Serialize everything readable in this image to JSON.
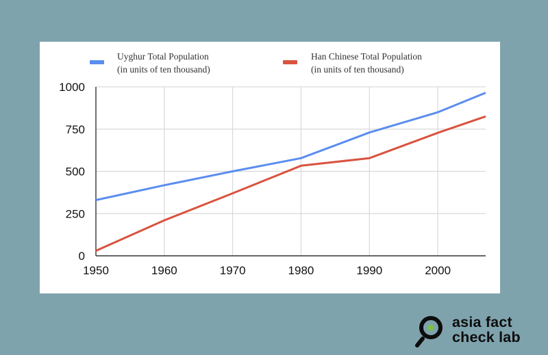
{
  "chart_data": {
    "type": "line",
    "title": "",
    "xlabel": "",
    "ylabel": "",
    "x": [
      1950,
      1960,
      1970,
      1980,
      1990,
      2000,
      2007
    ],
    "x_ticks": [
      "1950",
      "1960",
      "1970",
      "1980",
      "1990",
      "2000"
    ],
    "y_ticks": [
      "0",
      "250",
      "500",
      "750",
      "1000"
    ],
    "xlim": [
      1950,
      2007
    ],
    "ylim": [
      0,
      1000
    ],
    "grid": true,
    "legend_position": "top",
    "series": [
      {
        "name_line1": "Uyghur Total Population",
        "name_line2": "(in units of ten thousand)",
        "color": "#5b8def",
        "values": [
          330,
          418,
          500,
          578,
          730,
          850,
          965
        ]
      },
      {
        "name_line1": "Han Chinese Total Population",
        "name_line2": "(in units of ten thousand)",
        "color": "#d9533f",
        "values": [
          30,
          210,
          370,
          533,
          578,
          728,
          825
        ]
      }
    ]
  },
  "branding": {
    "line1": "asia fact",
    "line2": "check lab",
    "icon": "magnifier-icon",
    "accent": "#7cc142"
  }
}
